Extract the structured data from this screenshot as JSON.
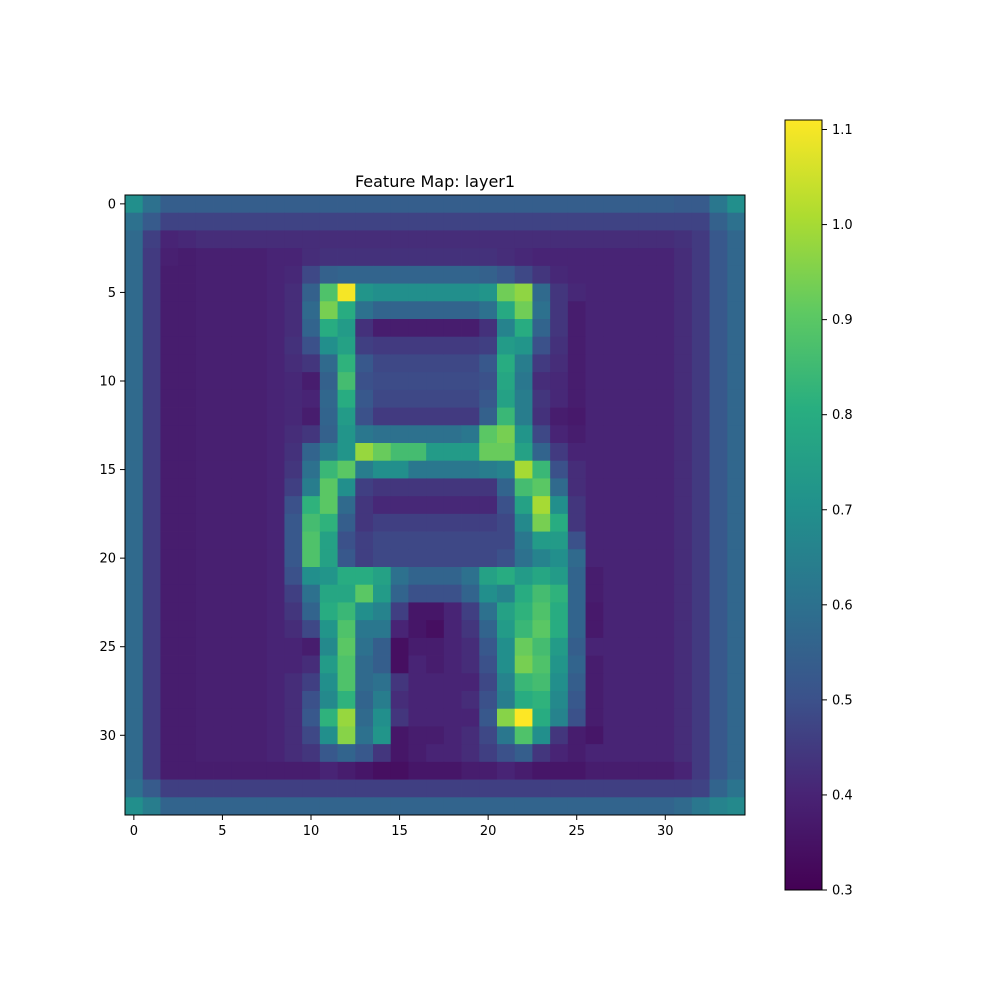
{
  "chart_data": {
    "type": "heatmap",
    "title": "Feature Map: layer1",
    "xlabel": "",
    "ylabel": "",
    "xlim": [
      -0.5,
      34.5
    ],
    "ylim": [
      34.5,
      -0.5
    ],
    "x_ticks": [
      "0",
      "5",
      "10",
      "15",
      "20",
      "25",
      "30"
    ],
    "y_ticks": [
      "0",
      "5",
      "10",
      "15",
      "20",
      "25",
      "30"
    ],
    "colormap": "viridis",
    "colorbar": {
      "vmin": 0.3,
      "vmax": 1.11,
      "ticks": [
        "0.3",
        "0.4",
        "0.5",
        "0.6",
        "0.7",
        "0.8",
        "0.9",
        "1.0",
        "1.1"
      ]
    },
    "grid": false,
    "rows": 35,
    "cols": 35,
    "values": [
      [
        0.7,
        0.6,
        0.54,
        0.54,
        0.54,
        0.54,
        0.54,
        0.54,
        0.54,
        0.54,
        0.54,
        0.54,
        0.54,
        0.54,
        0.54,
        0.54,
        0.54,
        0.54,
        0.54,
        0.54,
        0.54,
        0.54,
        0.54,
        0.54,
        0.54,
        0.54,
        0.54,
        0.54,
        0.54,
        0.54,
        0.54,
        0.53,
        0.53,
        0.62,
        0.7
      ],
      [
        0.6,
        0.53,
        0.47,
        0.47,
        0.47,
        0.47,
        0.47,
        0.47,
        0.47,
        0.47,
        0.47,
        0.47,
        0.47,
        0.47,
        0.47,
        0.47,
        0.47,
        0.47,
        0.47,
        0.47,
        0.47,
        0.47,
        0.47,
        0.47,
        0.47,
        0.47,
        0.47,
        0.47,
        0.47,
        0.47,
        0.47,
        0.47,
        0.47,
        0.55,
        0.6
      ],
      [
        0.58,
        0.46,
        0.4,
        0.41,
        0.42,
        0.42,
        0.42,
        0.42,
        0.42,
        0.42,
        0.42,
        0.42,
        0.42,
        0.42,
        0.42,
        0.42,
        0.42,
        0.42,
        0.42,
        0.42,
        0.42,
        0.42,
        0.42,
        0.42,
        0.42,
        0.42,
        0.42,
        0.42,
        0.42,
        0.42,
        0.42,
        0.43,
        0.45,
        0.52,
        0.57
      ],
      [
        0.58,
        0.45,
        0.39,
        0.38,
        0.39,
        0.39,
        0.39,
        0.39,
        0.4,
        0.4,
        0.42,
        0.43,
        0.43,
        0.43,
        0.43,
        0.43,
        0.43,
        0.43,
        0.43,
        0.43,
        0.43,
        0.42,
        0.41,
        0.4,
        0.4,
        0.4,
        0.4,
        0.4,
        0.4,
        0.4,
        0.4,
        0.42,
        0.45,
        0.52,
        0.57
      ],
      [
        0.58,
        0.45,
        0.38,
        0.38,
        0.39,
        0.39,
        0.39,
        0.39,
        0.4,
        0.41,
        0.48,
        0.55,
        0.56,
        0.56,
        0.56,
        0.56,
        0.56,
        0.56,
        0.56,
        0.56,
        0.55,
        0.52,
        0.48,
        0.44,
        0.41,
        0.4,
        0.4,
        0.4,
        0.4,
        0.4,
        0.4,
        0.42,
        0.45,
        0.52,
        0.57
      ],
      [
        0.58,
        0.45,
        0.38,
        0.38,
        0.39,
        0.39,
        0.39,
        0.39,
        0.4,
        0.42,
        0.55,
        0.88,
        1.1,
        0.72,
        0.7,
        0.7,
        0.7,
        0.7,
        0.7,
        0.7,
        0.72,
        0.93,
        0.97,
        0.58,
        0.44,
        0.41,
        0.4,
        0.4,
        0.4,
        0.4,
        0.4,
        0.42,
        0.45,
        0.52,
        0.57
      ],
      [
        0.58,
        0.45,
        0.38,
        0.38,
        0.39,
        0.39,
        0.39,
        0.39,
        0.4,
        0.42,
        0.58,
        0.94,
        0.8,
        0.6,
        0.56,
        0.56,
        0.56,
        0.56,
        0.56,
        0.56,
        0.6,
        0.79,
        0.93,
        0.6,
        0.44,
        0.38,
        0.4,
        0.4,
        0.4,
        0.4,
        0.4,
        0.42,
        0.45,
        0.52,
        0.57
      ],
      [
        0.58,
        0.45,
        0.38,
        0.38,
        0.39,
        0.39,
        0.39,
        0.39,
        0.4,
        0.42,
        0.56,
        0.8,
        0.74,
        0.43,
        0.38,
        0.38,
        0.38,
        0.38,
        0.38,
        0.38,
        0.43,
        0.66,
        0.8,
        0.56,
        0.44,
        0.38,
        0.4,
        0.4,
        0.4,
        0.4,
        0.4,
        0.42,
        0.45,
        0.52,
        0.57
      ],
      [
        0.58,
        0.45,
        0.38,
        0.38,
        0.39,
        0.39,
        0.39,
        0.39,
        0.4,
        0.43,
        0.5,
        0.7,
        0.76,
        0.46,
        0.45,
        0.45,
        0.45,
        0.45,
        0.45,
        0.45,
        0.46,
        0.74,
        0.72,
        0.5,
        0.43,
        0.38,
        0.4,
        0.4,
        0.4,
        0.4,
        0.4,
        0.42,
        0.45,
        0.52,
        0.57
      ],
      [
        0.58,
        0.45,
        0.38,
        0.38,
        0.39,
        0.39,
        0.39,
        0.39,
        0.4,
        0.42,
        0.44,
        0.58,
        0.82,
        0.52,
        0.48,
        0.48,
        0.48,
        0.48,
        0.48,
        0.48,
        0.52,
        0.8,
        0.64,
        0.45,
        0.42,
        0.38,
        0.4,
        0.4,
        0.4,
        0.4,
        0.4,
        0.42,
        0.45,
        0.52,
        0.57
      ],
      [
        0.58,
        0.45,
        0.38,
        0.38,
        0.39,
        0.39,
        0.39,
        0.39,
        0.4,
        0.41,
        0.38,
        0.55,
        0.86,
        0.5,
        0.49,
        0.49,
        0.49,
        0.49,
        0.49,
        0.49,
        0.5,
        0.78,
        0.62,
        0.42,
        0.41,
        0.38,
        0.4,
        0.4,
        0.4,
        0.4,
        0.4,
        0.42,
        0.45,
        0.52,
        0.57
      ],
      [
        0.58,
        0.45,
        0.38,
        0.38,
        0.39,
        0.39,
        0.39,
        0.39,
        0.4,
        0.41,
        0.4,
        0.57,
        0.8,
        0.52,
        0.48,
        0.48,
        0.48,
        0.48,
        0.48,
        0.48,
        0.52,
        0.76,
        0.64,
        0.44,
        0.41,
        0.38,
        0.4,
        0.4,
        0.4,
        0.4,
        0.4,
        0.42,
        0.45,
        0.52,
        0.57
      ],
      [
        0.58,
        0.45,
        0.38,
        0.38,
        0.39,
        0.39,
        0.39,
        0.39,
        0.4,
        0.41,
        0.38,
        0.56,
        0.74,
        0.5,
        0.45,
        0.45,
        0.45,
        0.45,
        0.45,
        0.45,
        0.55,
        0.84,
        0.64,
        0.43,
        0.38,
        0.37,
        0.4,
        0.4,
        0.4,
        0.4,
        0.4,
        0.42,
        0.45,
        0.52,
        0.57
      ],
      [
        0.58,
        0.45,
        0.38,
        0.38,
        0.39,
        0.39,
        0.39,
        0.39,
        0.4,
        0.42,
        0.44,
        0.55,
        0.72,
        0.62,
        0.6,
        0.6,
        0.6,
        0.6,
        0.6,
        0.62,
        0.9,
        0.94,
        0.72,
        0.48,
        0.4,
        0.38,
        0.4,
        0.4,
        0.4,
        0.4,
        0.4,
        0.42,
        0.45,
        0.52,
        0.57
      ],
      [
        0.58,
        0.45,
        0.38,
        0.38,
        0.39,
        0.39,
        0.39,
        0.39,
        0.4,
        0.43,
        0.56,
        0.64,
        0.72,
        0.98,
        0.92,
        0.86,
        0.86,
        0.74,
        0.74,
        0.74,
        0.92,
        0.92,
        0.76,
        0.56,
        0.45,
        0.4,
        0.4,
        0.4,
        0.4,
        0.4,
        0.4,
        0.42,
        0.45,
        0.52,
        0.57
      ],
      [
        0.58,
        0.45,
        0.38,
        0.38,
        0.39,
        0.39,
        0.39,
        0.39,
        0.4,
        0.44,
        0.6,
        0.84,
        0.9,
        0.64,
        0.7,
        0.7,
        0.62,
        0.62,
        0.62,
        0.62,
        0.64,
        0.66,
        1.0,
        0.84,
        0.5,
        0.42,
        0.4,
        0.4,
        0.4,
        0.4,
        0.4,
        0.42,
        0.45,
        0.52,
        0.57
      ],
      [
        0.58,
        0.45,
        0.38,
        0.38,
        0.39,
        0.39,
        0.39,
        0.39,
        0.4,
        0.46,
        0.64,
        0.9,
        0.7,
        0.46,
        0.44,
        0.44,
        0.44,
        0.44,
        0.44,
        0.44,
        0.44,
        0.56,
        0.86,
        0.9,
        0.58,
        0.42,
        0.4,
        0.4,
        0.4,
        0.4,
        0.4,
        0.42,
        0.45,
        0.52,
        0.57
      ],
      [
        0.58,
        0.45,
        0.38,
        0.38,
        0.39,
        0.39,
        0.39,
        0.39,
        0.4,
        0.5,
        0.82,
        0.9,
        0.58,
        0.44,
        0.41,
        0.41,
        0.41,
        0.41,
        0.41,
        0.41,
        0.41,
        0.5,
        0.76,
        1.0,
        0.7,
        0.44,
        0.4,
        0.4,
        0.4,
        0.4,
        0.4,
        0.42,
        0.45,
        0.52,
        0.57
      ],
      [
        0.58,
        0.45,
        0.38,
        0.38,
        0.39,
        0.39,
        0.39,
        0.39,
        0.4,
        0.52,
        0.86,
        0.82,
        0.54,
        0.44,
        0.46,
        0.46,
        0.46,
        0.46,
        0.46,
        0.46,
        0.46,
        0.48,
        0.68,
        0.94,
        0.8,
        0.44,
        0.4,
        0.4,
        0.4,
        0.4,
        0.4,
        0.42,
        0.45,
        0.52,
        0.57
      ],
      [
        0.58,
        0.45,
        0.38,
        0.38,
        0.39,
        0.39,
        0.39,
        0.39,
        0.4,
        0.52,
        0.88,
        0.76,
        0.5,
        0.46,
        0.48,
        0.48,
        0.48,
        0.48,
        0.48,
        0.48,
        0.48,
        0.48,
        0.62,
        0.74,
        0.74,
        0.5,
        0.4,
        0.4,
        0.4,
        0.4,
        0.4,
        0.42,
        0.45,
        0.52,
        0.57
      ],
      [
        0.58,
        0.45,
        0.38,
        0.38,
        0.39,
        0.39,
        0.39,
        0.39,
        0.4,
        0.52,
        0.88,
        0.76,
        0.52,
        0.46,
        0.48,
        0.48,
        0.48,
        0.48,
        0.48,
        0.48,
        0.48,
        0.5,
        0.6,
        0.66,
        0.7,
        0.58,
        0.4,
        0.4,
        0.4,
        0.4,
        0.4,
        0.42,
        0.45,
        0.52,
        0.57
      ],
      [
        0.58,
        0.45,
        0.38,
        0.38,
        0.39,
        0.39,
        0.39,
        0.39,
        0.4,
        0.5,
        0.7,
        0.72,
        0.8,
        0.8,
        0.76,
        0.6,
        0.56,
        0.56,
        0.56,
        0.6,
        0.76,
        0.8,
        0.74,
        0.78,
        0.74,
        0.56,
        0.38,
        0.4,
        0.4,
        0.4,
        0.4,
        0.42,
        0.45,
        0.52,
        0.57
      ],
      [
        0.58,
        0.45,
        0.38,
        0.38,
        0.39,
        0.39,
        0.39,
        0.39,
        0.4,
        0.46,
        0.6,
        0.78,
        0.78,
        0.9,
        0.74,
        0.56,
        0.5,
        0.5,
        0.5,
        0.56,
        0.7,
        0.66,
        0.8,
        0.86,
        0.82,
        0.56,
        0.38,
        0.4,
        0.4,
        0.4,
        0.4,
        0.42,
        0.45,
        0.52,
        0.57
      ],
      [
        0.58,
        0.45,
        0.38,
        0.38,
        0.39,
        0.39,
        0.39,
        0.39,
        0.4,
        0.44,
        0.56,
        0.8,
        0.84,
        0.7,
        0.66,
        0.46,
        0.36,
        0.36,
        0.4,
        0.46,
        0.6,
        0.76,
        0.82,
        0.88,
        0.8,
        0.56,
        0.37,
        0.4,
        0.4,
        0.4,
        0.4,
        0.42,
        0.45,
        0.52,
        0.57
      ],
      [
        0.58,
        0.45,
        0.38,
        0.38,
        0.39,
        0.39,
        0.39,
        0.39,
        0.4,
        0.42,
        0.48,
        0.72,
        0.88,
        0.62,
        0.62,
        0.4,
        0.36,
        0.34,
        0.4,
        0.44,
        0.56,
        0.74,
        0.84,
        0.9,
        0.8,
        0.56,
        0.37,
        0.4,
        0.4,
        0.4,
        0.4,
        0.42,
        0.45,
        0.52,
        0.57
      ],
      [
        0.58,
        0.45,
        0.38,
        0.38,
        0.39,
        0.39,
        0.39,
        0.39,
        0.4,
        0.4,
        0.38,
        0.68,
        0.9,
        0.6,
        0.54,
        0.34,
        0.38,
        0.38,
        0.4,
        0.42,
        0.52,
        0.7,
        0.92,
        0.86,
        0.74,
        0.54,
        0.4,
        0.4,
        0.4,
        0.4,
        0.4,
        0.42,
        0.45,
        0.52,
        0.57
      ],
      [
        0.58,
        0.45,
        0.38,
        0.38,
        0.39,
        0.39,
        0.39,
        0.39,
        0.4,
        0.4,
        0.42,
        0.74,
        0.88,
        0.58,
        0.54,
        0.34,
        0.4,
        0.38,
        0.4,
        0.42,
        0.5,
        0.7,
        0.94,
        0.88,
        0.72,
        0.56,
        0.38,
        0.4,
        0.4,
        0.4,
        0.4,
        0.42,
        0.45,
        0.52,
        0.57
      ],
      [
        0.58,
        0.45,
        0.38,
        0.38,
        0.39,
        0.39,
        0.39,
        0.39,
        0.4,
        0.42,
        0.46,
        0.7,
        0.88,
        0.58,
        0.6,
        0.44,
        0.4,
        0.4,
        0.4,
        0.4,
        0.48,
        0.66,
        0.84,
        0.86,
        0.7,
        0.54,
        0.38,
        0.4,
        0.4,
        0.4,
        0.4,
        0.42,
        0.45,
        0.52,
        0.57
      ],
      [
        0.58,
        0.45,
        0.38,
        0.38,
        0.39,
        0.39,
        0.39,
        0.39,
        0.4,
        0.42,
        0.5,
        0.68,
        0.82,
        0.56,
        0.64,
        0.42,
        0.4,
        0.4,
        0.4,
        0.42,
        0.5,
        0.64,
        0.8,
        0.82,
        0.68,
        0.52,
        0.38,
        0.4,
        0.4,
        0.4,
        0.4,
        0.42,
        0.45,
        0.52,
        0.57
      ],
      [
        0.58,
        0.45,
        0.38,
        0.38,
        0.39,
        0.39,
        0.39,
        0.39,
        0.4,
        0.42,
        0.52,
        0.82,
        0.98,
        0.58,
        0.7,
        0.44,
        0.4,
        0.4,
        0.4,
        0.4,
        0.52,
        0.96,
        1.11,
        0.8,
        0.66,
        0.5,
        0.38,
        0.4,
        0.4,
        0.4,
        0.4,
        0.42,
        0.45,
        0.52,
        0.57
      ],
      [
        0.58,
        0.45,
        0.38,
        0.38,
        0.39,
        0.39,
        0.39,
        0.39,
        0.4,
        0.42,
        0.48,
        0.7,
        0.96,
        0.6,
        0.72,
        0.36,
        0.38,
        0.38,
        0.4,
        0.42,
        0.48,
        0.62,
        0.88,
        0.7,
        0.44,
        0.38,
        0.36,
        0.4,
        0.4,
        0.4,
        0.4,
        0.42,
        0.45,
        0.52,
        0.57
      ],
      [
        0.58,
        0.45,
        0.38,
        0.38,
        0.39,
        0.39,
        0.39,
        0.39,
        0.4,
        0.42,
        0.44,
        0.52,
        0.56,
        0.52,
        0.44,
        0.36,
        0.38,
        0.4,
        0.4,
        0.42,
        0.46,
        0.5,
        0.54,
        0.44,
        0.4,
        0.38,
        0.4,
        0.4,
        0.4,
        0.4,
        0.4,
        0.42,
        0.45,
        0.52,
        0.57
      ],
      [
        0.58,
        0.45,
        0.38,
        0.38,
        0.38,
        0.38,
        0.38,
        0.38,
        0.38,
        0.38,
        0.38,
        0.4,
        0.38,
        0.36,
        0.34,
        0.34,
        0.36,
        0.36,
        0.36,
        0.38,
        0.38,
        0.4,
        0.38,
        0.36,
        0.36,
        0.36,
        0.38,
        0.38,
        0.38,
        0.38,
        0.38,
        0.4,
        0.45,
        0.52,
        0.57
      ],
      [
        0.6,
        0.53,
        0.46,
        0.46,
        0.46,
        0.46,
        0.46,
        0.46,
        0.46,
        0.46,
        0.46,
        0.46,
        0.46,
        0.46,
        0.46,
        0.46,
        0.46,
        0.46,
        0.46,
        0.46,
        0.46,
        0.46,
        0.46,
        0.46,
        0.46,
        0.46,
        0.46,
        0.46,
        0.46,
        0.46,
        0.46,
        0.46,
        0.47,
        0.56,
        0.61
      ],
      [
        0.7,
        0.64,
        0.56,
        0.56,
        0.56,
        0.56,
        0.56,
        0.56,
        0.56,
        0.56,
        0.56,
        0.56,
        0.56,
        0.56,
        0.56,
        0.56,
        0.56,
        0.56,
        0.56,
        0.56,
        0.56,
        0.56,
        0.56,
        0.56,
        0.56,
        0.56,
        0.56,
        0.56,
        0.56,
        0.56,
        0.56,
        0.58,
        0.62,
        0.66,
        0.68
      ]
    ]
  }
}
